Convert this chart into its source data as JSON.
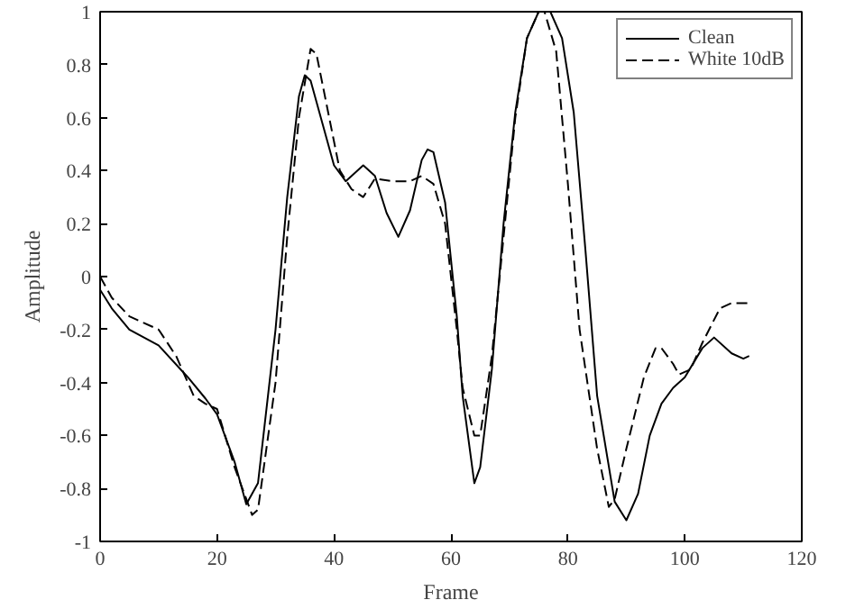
{
  "chart_data": {
    "type": "line",
    "xlabel": "Frame",
    "ylabel": "Amplitude",
    "xlim": [
      0,
      120
    ],
    "ylim": [
      -1,
      1
    ],
    "xticks": [
      0,
      20,
      40,
      60,
      80,
      100,
      120
    ],
    "yticks": [
      -1,
      -0.8,
      -0.6,
      -0.4,
      -0.2,
      0,
      0.2,
      0.4,
      0.6,
      0.8,
      1
    ],
    "grid": false,
    "legend": "top right",
    "series": [
      {
        "name": "Clean",
        "color": "#000000",
        "line_style": "solid",
        "x": [
          0,
          2,
          5,
          10,
          15,
          18,
          20,
          23,
          25,
          27,
          30,
          32,
          34,
          35,
          36,
          38,
          40,
          42,
          45,
          47,
          49,
          51,
          53,
          55,
          56,
          57,
          59,
          61,
          62,
          64,
          65,
          67,
          69,
          71,
          73,
          75,
          77,
          79,
          81,
          83,
          85,
          88,
          90,
          92,
          94,
          96,
          98,
          100,
          103,
          105,
          108,
          110,
          111
        ],
        "values": [
          -0.05,
          -0.12,
          -0.2,
          -0.26,
          -0.38,
          -0.46,
          -0.52,
          -0.7,
          -0.86,
          -0.78,
          -0.2,
          0.3,
          0.68,
          0.76,
          0.74,
          0.58,
          0.42,
          0.36,
          0.42,
          0.38,
          0.24,
          0.15,
          0.25,
          0.44,
          0.48,
          0.47,
          0.28,
          -0.15,
          -0.45,
          -0.78,
          -0.72,
          -0.35,
          0.2,
          0.62,
          0.9,
          1.0,
          1.0,
          0.9,
          0.62,
          0.1,
          -0.45,
          -0.85,
          -0.92,
          -0.82,
          -0.6,
          -0.48,
          -0.42,
          -0.38,
          -0.27,
          -0.23,
          -0.29,
          -0.31,
          -0.3
        ]
      },
      {
        "name": "White 10dB",
        "color": "#000000",
        "line_style": "dashed",
        "x": [
          0,
          2,
          5,
          10,
          13,
          16,
          18,
          20,
          23,
          26,
          27,
          30,
          32,
          34,
          36,
          37,
          39,
          41,
          43,
          45,
          47,
          50,
          53,
          55,
          57,
          59,
          61,
          62,
          64,
          65,
          67,
          69,
          71,
          73,
          75,
          76,
          78,
          80,
          82,
          85,
          87,
          88,
          90,
          93,
          95,
          96,
          98,
          99,
          101,
          103,
          106,
          108,
          111
        ],
        "values": [
          0,
          -0.08,
          -0.15,
          -0.2,
          -0.3,
          -0.45,
          -0.48,
          -0.5,
          -0.72,
          -0.9,
          -0.88,
          -0.4,
          0.15,
          0.6,
          0.86,
          0.84,
          0.62,
          0.4,
          0.33,
          0.3,
          0.37,
          0.36,
          0.36,
          0.38,
          0.35,
          0.2,
          -0.2,
          -0.42,
          -0.6,
          -0.6,
          -0.3,
          0.15,
          0.6,
          0.9,
          1.0,
          1.0,
          0.85,
          0.35,
          -0.2,
          -0.65,
          -0.87,
          -0.84,
          -0.65,
          -0.38,
          -0.27,
          -0.27,
          -0.33,
          -0.37,
          -0.35,
          -0.25,
          -0.12,
          -0.1,
          -0.1
        ]
      }
    ]
  }
}
